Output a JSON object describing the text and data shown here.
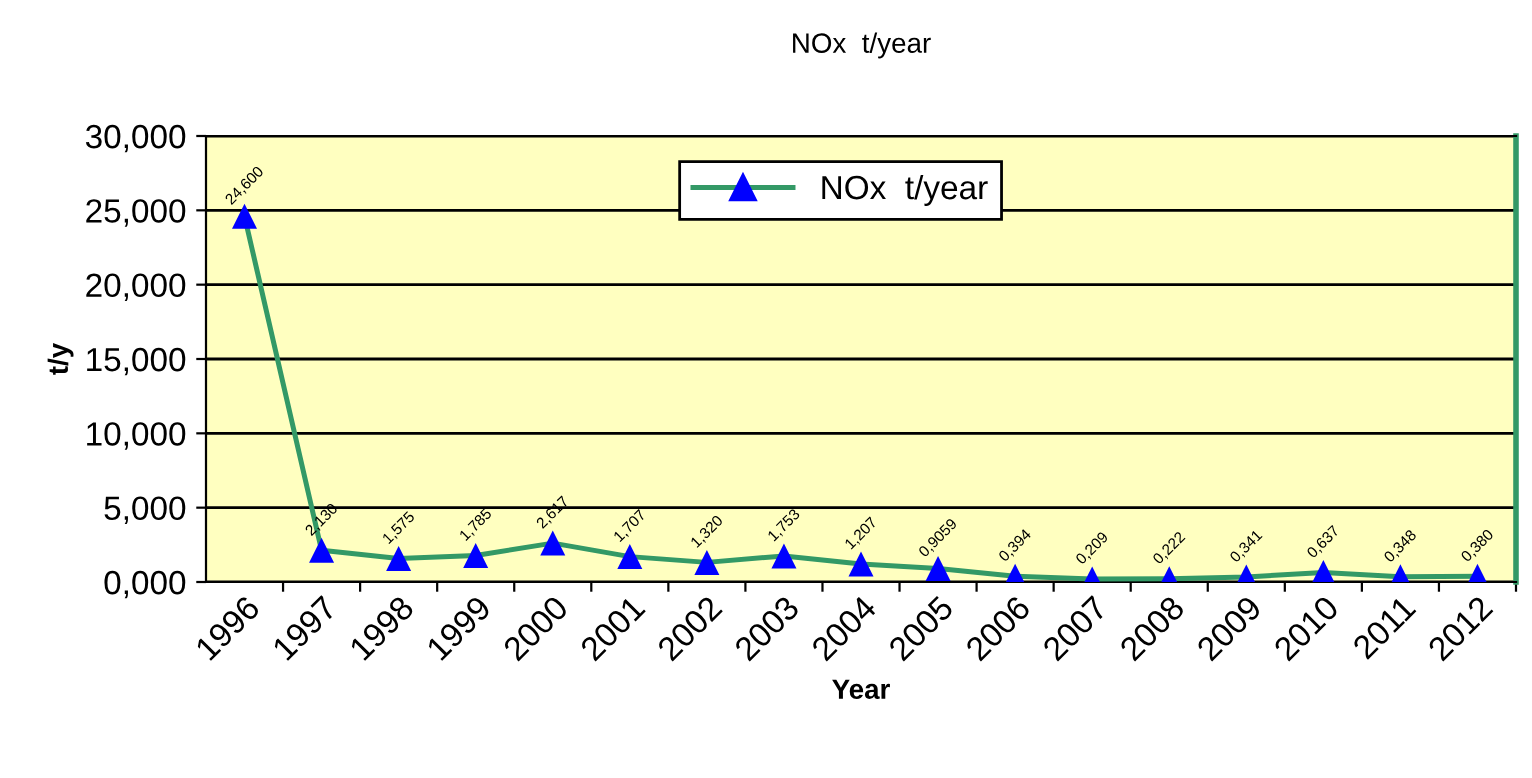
{
  "chart_data": {
    "type": "line",
    "title": "NOx  t/year",
    "xlabel": "Year",
    "ylabel": "t/y",
    "categories": [
      "1996",
      "1997",
      "1998",
      "1999",
      "2000",
      "2001",
      "2002",
      "2003",
      "2004",
      "2005",
      "2006",
      "2007",
      "2008",
      "2009",
      "2010",
      "2011",
      "2012"
    ],
    "series": [
      {
        "name": "NOx  t/year",
        "color": "#339966",
        "colors": [
          "#0000ff",
          "#0000ff",
          "#0000ff",
          "#0000ff",
          "#0000ff",
          "#0000ff",
          "#0000ff",
          "#0000ff",
          "#0000ff",
          "#0000ff",
          "#0000ff",
          "#0000ff",
          "#0000ff",
          "#0000ff",
          "#0000ff",
          "#0000ff",
          "#0000ff"
        ],
        "values": [
          24.6,
          2.13,
          1.575,
          1.785,
          2.617,
          1.707,
          1.32,
          1.753,
          1.207,
          0.9059,
          0.394,
          0.209,
          0.222,
          0.341,
          0.637,
          0.348,
          0.38
        ],
        "value_labels": [
          "24,600",
          "2,130",
          "1,575",
          "1,785",
          "2,617",
          "1,707",
          "1,320",
          "1,753",
          "1,207",
          "0,9059",
          "0,394",
          "0,209",
          "0,222",
          "0,341",
          "0,637",
          "0,348",
          "0,380"
        ]
      }
    ],
    "ylim": [
      0,
      30
    ],
    "yticks": [
      {
        "value": 0,
        "label": "0,000"
      },
      {
        "value": 5,
        "label": "5,000"
      },
      {
        "value": 10,
        "label": "10,000"
      },
      {
        "value": 15,
        "label": "15,000"
      },
      {
        "value": 20,
        "label": "20,000"
      },
      {
        "value": 25,
        "label": "25,000"
      },
      {
        "value": 30,
        "label": "30,000"
      }
    ],
    "grid": "y",
    "legend": "top right",
    "marker": "triangle",
    "line_style": "solid"
  }
}
